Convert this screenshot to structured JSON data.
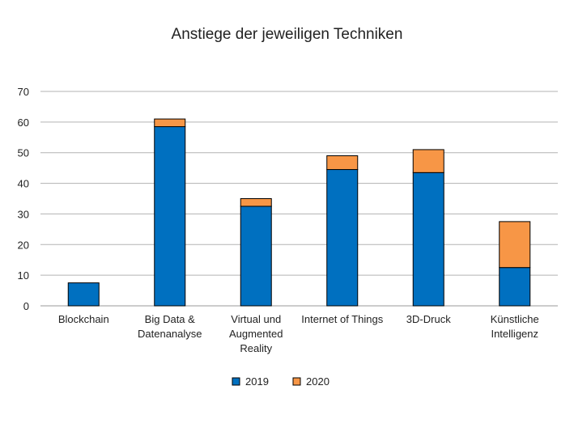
{
  "chart_data": {
    "type": "bar",
    "stacked": true,
    "title": "Anstiege der jeweiligen Techniken",
    "xlabel": "",
    "ylabel": "",
    "ylim": [
      0,
      70
    ],
    "yticks": [
      0,
      10,
      20,
      30,
      40,
      50,
      60,
      70
    ],
    "grid": true,
    "legend_position": "bottom",
    "categories": [
      [
        "Blockchain"
      ],
      [
        "Big Data &",
        "Datenanalyse"
      ],
      [
        "Virtual und",
        "Augmented",
        "Reality"
      ],
      [
        "Internet of Things"
      ],
      [
        "3D-Druck"
      ],
      [
        "Künstliche",
        "Intelligenz"
      ]
    ],
    "series": [
      {
        "name": "2019",
        "color": "#0070C0",
        "values": [
          7.5,
          58.5,
          32.5,
          44.5,
          43.5,
          12.5
        ]
      },
      {
        "name": "2020",
        "color": "#F79646",
        "values": [
          0,
          2.5,
          2.5,
          4.5,
          7.5,
          15
        ]
      }
    ]
  }
}
